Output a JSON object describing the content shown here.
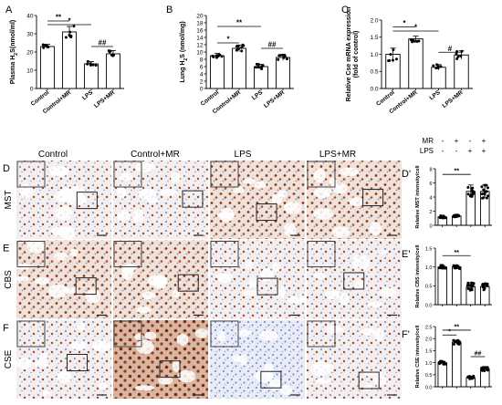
{
  "colors": {
    "bar_fill": "#ffffff",
    "bar_stroke": "#000000",
    "dots": "#000000",
    "tissue_bg": "#f3eeee",
    "stain_brown": "#8e3a1c",
    "counterstain_blue": "#7d93c9",
    "box_stroke": "#333333"
  },
  "panels_top": [
    {
      "letter": "A",
      "ylabel": "Plasma H2S(nmol/ml)",
      "ylabel_parts": {
        "pre": "Plasma H",
        "sub": "2",
        "post": "S(nmol/ml)"
      },
      "ticks": [
        "0",
        "10",
        "20",
        "30",
        "40"
      ],
      "categories": [
        "Control",
        "Control+MR",
        "LPS",
        "LPS+MR"
      ],
      "sig": [
        {
          "text": "**",
          "from": 0,
          "to": 1,
          "level": 37
        },
        {
          "text": "*",
          "from": 0,
          "to": 2,
          "level": 35
        },
        {
          "text": "##",
          "from": 2,
          "to": 3,
          "level": 23
        }
      ]
    },
    {
      "letter": "B",
      "ylabel": "Lung H2S (nmol/mg)",
      "ylabel_parts": {
        "pre": "Lung H",
        "sub": "2",
        "post": "S (nmol/mg)"
      },
      "ticks": [
        "0",
        "2",
        "4",
        "6",
        "8",
        "10",
        "12",
        "14",
        "16",
        "18",
        "20"
      ],
      "categories": [
        "Control",
        "Control+MR",
        "LPS",
        "LPS+MR"
      ],
      "sig": [
        {
          "text": "**",
          "from": 0,
          "to": 2,
          "level": 17
        },
        {
          "text": "*",
          "from": 0,
          "to": 1,
          "level": 12.5
        },
        {
          "text": "##",
          "from": 2,
          "to": 3,
          "level": 11
        }
      ]
    },
    {
      "letter": "C",
      "ylabel": "Relative Cse mRNA expression (fold of control)",
      "ylabel_line1": "Relative Cse mRNA expression",
      "ylabel_line2": "(fold of control)",
      "ticks": [
        "0.0",
        "0.5",
        "1.0",
        "1.5",
        "2.0"
      ],
      "categories": [
        "Control",
        "Control+MR",
        "LPS",
        "LPS+MR"
      ],
      "sig": [
        {
          "text": "*",
          "from": 0,
          "to": 1,
          "level": 1.8
        },
        {
          "text": "*",
          "from": 0,
          "to": 2,
          "level": 1.68
        },
        {
          "text": "#",
          "from": 2,
          "to": 3,
          "level": 1.06
        }
      ]
    }
  ],
  "micro": {
    "col_headers": [
      "Control",
      "Control+MR",
      "LPS",
      "LPS+MR"
    ],
    "rows": [
      {
        "letter": "D",
        "label": "MST"
      },
      {
        "letter": "E",
        "label": "CBS"
      },
      {
        "letter": "F",
        "label": "CSE"
      }
    ]
  },
  "mr_lps_table": {
    "rows": [
      {
        "label": "MR",
        "signs": [
          "-",
          "+",
          "-",
          "+"
        ]
      },
      {
        "label": "LPS",
        "signs": [
          "-",
          "-",
          "+",
          "+"
        ]
      }
    ]
  },
  "panels_right": [
    {
      "letter": "D'",
      "ylabel": "Relative MST intensity/cell",
      "ticks": [
        "0",
        "2",
        "4",
        "6",
        "8"
      ],
      "sig": [
        {
          "text": "**",
          "from": 0,
          "to": 2,
          "level": 7.2
        }
      ]
    },
    {
      "letter": "E'",
      "ylabel": "Relative CBS intensity/cell",
      "ticks": [
        "0.0",
        "0.5",
        "1.0",
        "1.5"
      ],
      "sig": [
        {
          "text": "**",
          "from": 0,
          "to": 2,
          "level": 1.3
        }
      ]
    },
    {
      "letter": "F'",
      "ylabel": "Relative CSE intensity/cell",
      "ticks": [
        "0.0",
        "0.5",
        "1.0",
        "1.5",
        "2.0",
        "2.5"
      ],
      "sig": [
        {
          "text": "**",
          "from": 0,
          "to": 2,
          "level": 2.35
        },
        {
          "text": "*",
          "from": 0,
          "to": 1,
          "level": 2.15
        },
        {
          "text": "##",
          "from": 2,
          "to": 3,
          "level": 1.25
        }
      ]
    }
  ],
  "chart_data": [
    {
      "type": "bar",
      "panel": "A",
      "categories": [
        "Control",
        "Control+MR",
        "LPS",
        "LPS+MR"
      ],
      "values": [
        23,
        31,
        13.5,
        19
      ],
      "errors": [
        1.2,
        3,
        1.2,
        1.8
      ],
      "ylim": [
        0,
        40
      ],
      "ylabel": "Plasma H2S(nmol/ml)"
    },
    {
      "type": "bar",
      "panel": "B",
      "categories": [
        "Control",
        "Control+MR",
        "LPS",
        "LPS+MR"
      ],
      "values": [
        9,
        11,
        6,
        8.5
      ],
      "errors": [
        0.6,
        0.9,
        0.6,
        0.8
      ],
      "ylim": [
        0,
        20
      ],
      "ylabel": "Lung H2S (nmol/mg)"
    },
    {
      "type": "bar",
      "panel": "C",
      "categories": [
        "Control",
        "Control+MR",
        "LPS",
        "LPS+MR"
      ],
      "values": [
        1.0,
        1.45,
        0.62,
        0.98
      ],
      "errors": [
        0.18,
        0.08,
        0.08,
        0.12
      ],
      "ylim": [
        0,
        2
      ],
      "ylabel": "Relative Cse mRNA expression (fold of control)"
    },
    {
      "type": "bar",
      "panel": "D'",
      "categories": [
        "Control",
        "Control+MR",
        "LPS",
        "LPS+MR"
      ],
      "values": [
        1.2,
        1.3,
        4.8,
        4.8
      ],
      "errors": [
        0.15,
        0.15,
        0.9,
        0.9
      ],
      "ylim": [
        0,
        8
      ],
      "ylabel": "Relative MST intensity/cell"
    },
    {
      "type": "bar",
      "panel": "E'",
      "categories": [
        "Control",
        "Control+MR",
        "LPS",
        "LPS+MR"
      ],
      "values": [
        1.0,
        1.0,
        0.48,
        0.48
      ],
      "errors": [
        0.04,
        0.04,
        0.1,
        0.08
      ],
      "ylim": [
        0,
        1.5
      ],
      "ylabel": "Relative CBS intensity/cell"
    },
    {
      "type": "bar",
      "panel": "F'",
      "categories": [
        "Control",
        "Control+MR",
        "LPS",
        "LPS+MR"
      ],
      "values": [
        1.0,
        1.85,
        0.38,
        0.75
      ],
      "errors": [
        0.06,
        0.08,
        0.06,
        0.08
      ],
      "ylim": [
        0,
        2.5
      ],
      "ylabel": "Relative CSE intensity/cell"
    }
  ]
}
